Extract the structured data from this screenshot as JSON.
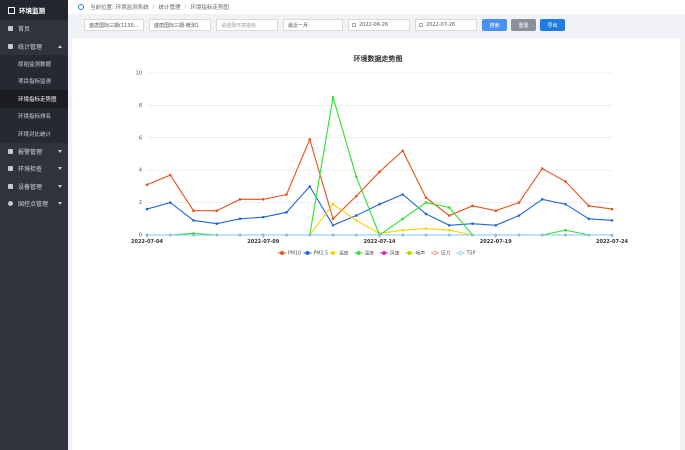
{
  "sidebar": {
    "title": "环境监测",
    "menu": [
      "首页",
      "统计管理"
    ],
    "submenu": [
      "原始监测数据",
      "项目指标监测",
      "环境指标走势图",
      "环境指标排名",
      "环境对比统计"
    ],
    "menu_more": [
      "报警管理",
      "环境检查",
      "设备管理",
      "国控点管理"
    ]
  },
  "breadcrumb": {
    "label": "当前位置:",
    "items": [
      "环境监测系统",
      "统计管理",
      "环境指标走势图"
    ]
  },
  "filters": {
    "selects": [
      "盛唐国际三期(1130...",
      "盛唐国际三期-微测1",
      "请选择环境指标",
      "最近一月"
    ],
    "dates": [
      "2022-06-26",
      "2022-07-26"
    ],
    "buttons": [
      "搜索",
      "重置",
      "导出"
    ]
  },
  "chart": {
    "type": "line",
    "title": "环境数据走势图",
    "categories": [
      "2022-07-04",
      null,
      null,
      null,
      null,
      "2022-07-09",
      null,
      null,
      null,
      null,
      "2022-07-14",
      null,
      null,
      null,
      null,
      "2022-07-19",
      null,
      null,
      null,
      null,
      "2022-07-24"
    ],
    "ylim": [
      0,
      10
    ],
    "yticks": [
      0,
      2,
      4,
      6,
      8,
      10
    ],
    "grid": true,
    "legend": "bottom",
    "series": [
      {
        "name": "PM10",
        "color": "#e8521c",
        "values": [
          3.1,
          3.7,
          1.5,
          1.5,
          2.2,
          2.2,
          2.5,
          5.9,
          1.0,
          2.4,
          3.9,
          5.2,
          2.3,
          1.2,
          1.8,
          1.5,
          2.0,
          4.1,
          3.3,
          1.8,
          1.6
        ]
      },
      {
        "name": "PM2.5",
        "color": "#1f66d8",
        "values": [
          1.6,
          2.0,
          0.9,
          0.7,
          1.0,
          1.1,
          1.4,
          3.0,
          0.6,
          1.2,
          1.9,
          2.5,
          1.3,
          0.6,
          0.7,
          0.6,
          1.2,
          2.2,
          1.9,
          1.0,
          0.9
        ]
      },
      {
        "name": "温度",
        "color": "#f2d600",
        "values": [
          0,
          0,
          0,
          0,
          0,
          0,
          0,
          0,
          1.9,
          0.9,
          0.1,
          0.3,
          0.4,
          0.3,
          0,
          0,
          0,
          0,
          0,
          0,
          0
        ]
      },
      {
        "name": "湿度",
        "color": "#2fdf2f",
        "values": [
          0,
          0,
          0.1,
          0,
          0,
          0,
          0,
          0,
          8.5,
          3.6,
          0,
          1.0,
          2.0,
          1.7,
          0,
          0,
          0,
          0,
          0.3,
          0,
          0
        ]
      },
      {
        "name": "风速",
        "color": "#e020c0",
        "values": [
          0,
          0,
          0,
          0,
          0,
          0,
          0,
          0,
          0,
          0,
          0,
          0,
          0,
          0,
          0,
          0,
          0,
          0,
          0,
          0,
          0
        ]
      },
      {
        "name": "噪声",
        "color": "#b6d400",
        "values": [
          0,
          0,
          0,
          0,
          0,
          0,
          0,
          0,
          0,
          0,
          0,
          0,
          0,
          0,
          0,
          0,
          0,
          0,
          0,
          0,
          0
        ]
      },
      {
        "name": "压力",
        "color": "#f08080",
        "values": [
          0,
          0,
          0,
          0,
          0,
          0,
          0,
          0,
          0,
          0,
          0,
          0,
          0,
          0,
          0,
          0,
          0,
          0,
          0,
          0,
          0
        ]
      },
      {
        "name": "TSP",
        "color": "#7cc6ee",
        "values": [
          0,
          0,
          0,
          0,
          0,
          0,
          0,
          0,
          0,
          0,
          0,
          0,
          0,
          0,
          0,
          0,
          0,
          0,
          0,
          0,
          0
        ]
      }
    ]
  }
}
